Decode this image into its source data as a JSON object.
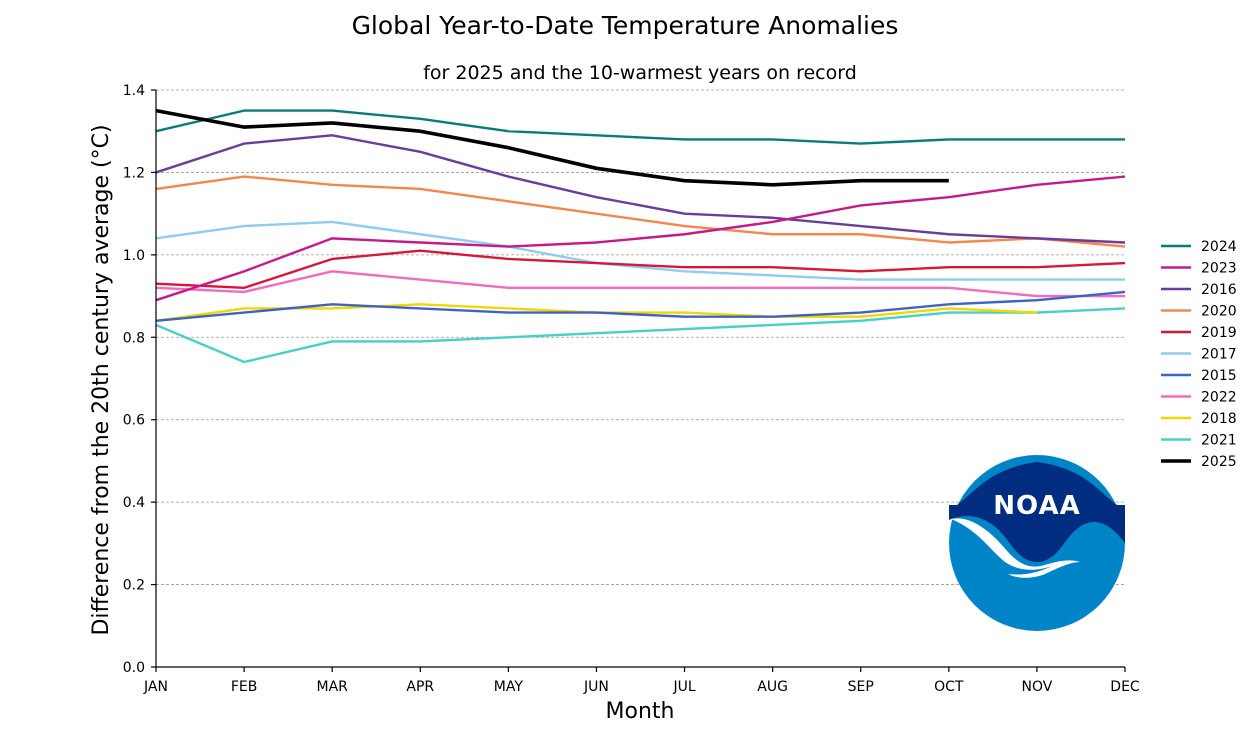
{
  "chart_data": {
    "type": "line",
    "title": "Global Year-to-Date Temperature Anomalies",
    "subtitle": "for 2025 and the 10-warmest years on record",
    "xlabel": "Month",
    "ylabel": "Difference from the 20th century average (°C)",
    "categories": [
      "JAN",
      "FEB",
      "MAR",
      "APR",
      "MAY",
      "JUN",
      "JUL",
      "AUG",
      "SEP",
      "OCT",
      "NOV",
      "DEC"
    ],
    "ylim": [
      0.0,
      1.4
    ],
    "yticks": [
      "0.0",
      "0.2",
      "0.4",
      "0.6",
      "0.8",
      "1.0",
      "1.2",
      "1.4"
    ],
    "grid": "horizontal dashed",
    "legend_position": "right",
    "series": [
      {
        "name": "2024",
        "color": "#0a7b7b",
        "values": [
          1.3,
          1.35,
          1.35,
          1.33,
          1.3,
          1.29,
          1.28,
          1.28,
          1.27,
          1.28,
          1.28,
          1.28
        ]
      },
      {
        "name": "2023",
        "color": "#c51b8a",
        "values": [
          0.89,
          0.96,
          1.04,
          1.03,
          1.02,
          1.03,
          1.05,
          1.08,
          1.12,
          1.14,
          1.17,
          1.19
        ]
      },
      {
        "name": "2016",
        "color": "#6a3d9a",
        "values": [
          1.2,
          1.27,
          1.29,
          1.25,
          1.19,
          1.14,
          1.1,
          1.09,
          1.07,
          1.05,
          1.04,
          1.03
        ]
      },
      {
        "name": "2020",
        "color": "#f4874b",
        "values": [
          1.16,
          1.19,
          1.17,
          1.16,
          1.13,
          1.1,
          1.07,
          1.05,
          1.05,
          1.03,
          1.04,
          1.02
        ]
      },
      {
        "name": "2019",
        "color": "#d6173c",
        "values": [
          0.93,
          0.92,
          0.99,
          1.01,
          0.99,
          0.98,
          0.97,
          0.97,
          0.96,
          0.97,
          0.97,
          0.98
        ]
      },
      {
        "name": "2017",
        "color": "#8ecdf0",
        "values": [
          1.04,
          1.07,
          1.08,
          1.05,
          1.02,
          0.98,
          0.96,
          0.95,
          0.94,
          0.94,
          0.94,
          0.94
        ]
      },
      {
        "name": "2015",
        "color": "#3f62c8",
        "values": [
          0.84,
          0.86,
          0.88,
          0.87,
          0.86,
          0.86,
          0.85,
          0.85,
          0.86,
          0.88,
          0.89,
          0.91
        ]
      },
      {
        "name": "2022",
        "color": "#f26bbd",
        "values": [
          0.92,
          0.91,
          0.96,
          0.94,
          0.92,
          0.92,
          0.92,
          0.92,
          0.92,
          0.92,
          0.9,
          0.9
        ]
      },
      {
        "name": "2018",
        "color": "#f2d600",
        "values": [
          0.84,
          0.87,
          0.87,
          0.88,
          0.87,
          0.86,
          0.86,
          0.85,
          0.85,
          0.87,
          0.86,
          null
        ]
      },
      {
        "name": "2021",
        "color": "#47cfc8",
        "values": [
          0.83,
          0.74,
          0.79,
          0.79,
          0.8,
          0.81,
          0.82,
          0.83,
          0.84,
          0.86,
          0.86,
          0.87
        ]
      },
      {
        "name": "2025",
        "color": "#000000",
        "values": [
          1.35,
          1.31,
          1.32,
          1.3,
          1.26,
          1.21,
          1.18,
          1.17,
          1.18,
          1.18,
          null,
          null
        ]
      }
    ]
  },
  "logo": {
    "text": "NOAA",
    "upper_color": "#002d7f",
    "lower_color": "#0084c8"
  }
}
